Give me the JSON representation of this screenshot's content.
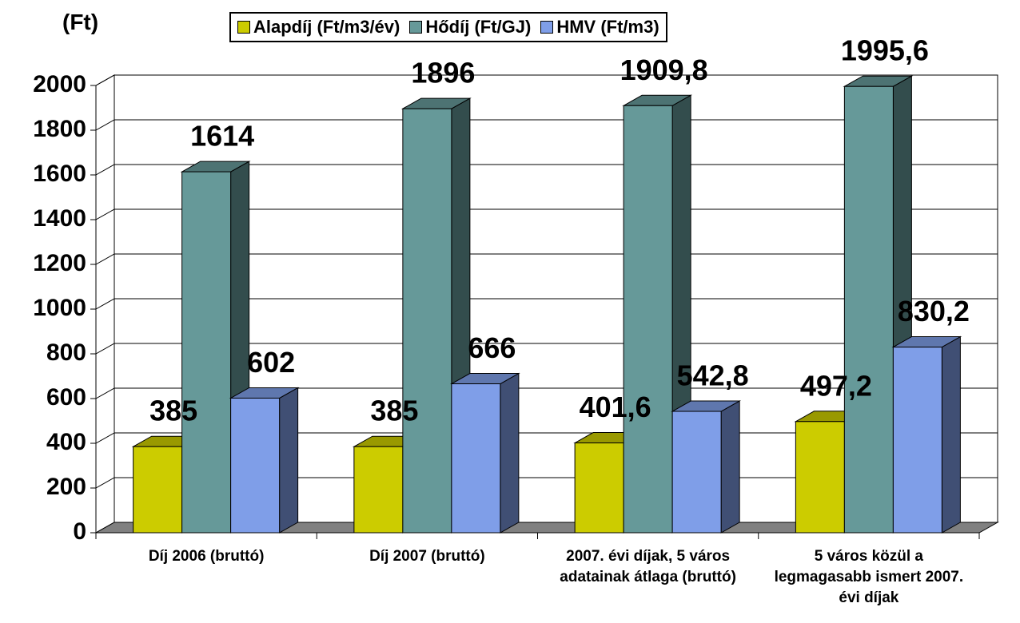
{
  "chart_data": {
    "type": "bar3d",
    "axis_label": "(Ft)",
    "categories": [
      "Díj 2006 (bruttó)",
      "Díj 2007 (bruttó)",
      "2007. évi díjak, 5 város adatainak átlaga (bruttó)",
      "5 város közül a legmagasabb ismert 2007. évi díjak"
    ],
    "series": [
      {
        "name": "Alapdíj (Ft/m3/év)",
        "color": "#cccc00",
        "values": [
          385,
          385,
          401.6,
          497.2
        ],
        "value_labels": [
          "385",
          "385",
          "401,6",
          "497,2"
        ]
      },
      {
        "name": "Hődíj (Ft/GJ)",
        "color": "#669999",
        "values": [
          1614,
          1896,
          1909.8,
          1995.6
        ],
        "value_labels": [
          "1614",
          "1896",
          "1909,8",
          "1995,6"
        ]
      },
      {
        "name": "HMV (Ft/m3)",
        "color": "#7f9ee8",
        "values": [
          602,
          666,
          542.8,
          830.2
        ],
        "value_labels": [
          "602",
          "666",
          "542,8",
          "830,2"
        ]
      }
    ],
    "ylim": [
      0,
      2000
    ],
    "yticks": [
      0,
      200,
      400,
      600,
      800,
      1000,
      1200,
      1400,
      1600,
      1800,
      2000
    ],
    "grid": true,
    "legend": "top"
  }
}
